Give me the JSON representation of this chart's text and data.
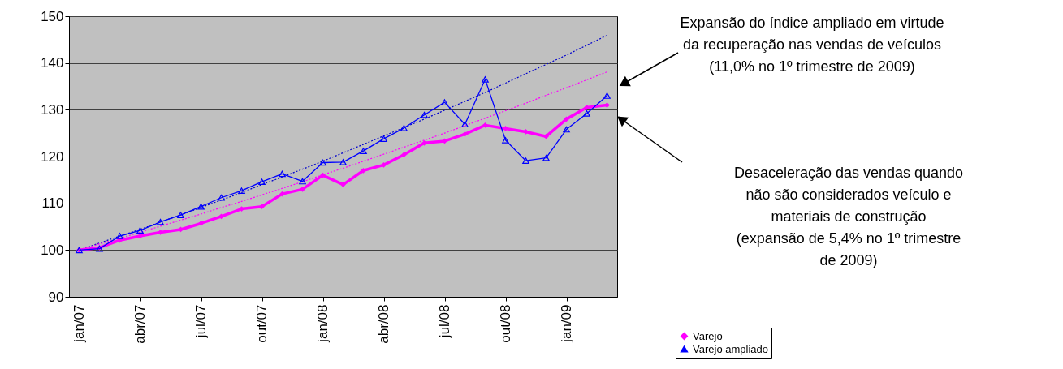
{
  "chart_data": {
    "type": "line",
    "categories": [
      "jan/07",
      null,
      null,
      "abr/07",
      null,
      null,
      "jul/07",
      null,
      null,
      "out/07",
      null,
      null,
      "jan/08",
      null,
      null,
      "abr/08",
      null,
      null,
      "jul/08",
      null,
      null,
      "out/08",
      null,
      null,
      "jan/09",
      null,
      null
    ],
    "series": [
      {
        "name": "Varejo",
        "color": "#ff00ff",
        "marker": "diamond",
        "line_style": "solid",
        "values": [
          100,
          100.5,
          102.1,
          103,
          103.8,
          104.4,
          105.7,
          107.2,
          108.8,
          109.3,
          112,
          113,
          116,
          114,
          117,
          118.2,
          120.4,
          122.9,
          123.3,
          124.8,
          126.7,
          126,
          125.3,
          124.3,
          128,
          130.5,
          131
        ]
      },
      {
        "name": "Varejo ampliado",
        "color": "#0000ff",
        "marker": "triangle",
        "line_style": "solid",
        "values": [
          100,
          100.3,
          103,
          104.2,
          106,
          107.5,
          109.3,
          111.2,
          112.7,
          114.6,
          116.3,
          114.7,
          118.7,
          118.8,
          121.2,
          123.8,
          126.1,
          128.9,
          131.6,
          126.9,
          136.5,
          123.5,
          119.1,
          119.7,
          125.8,
          129.2,
          133
        ]
      },
      {
        "color": "#0000cc",
        "marker": "none",
        "line_style": "dotted",
        "values": [
          100,
          101.5,
          103,
          104.4,
          106,
          107.5,
          109.1,
          110.7,
          112.3,
          114,
          115.6,
          117.3,
          119,
          120.8,
          122.6,
          124.4,
          126.2,
          128,
          129.9,
          131.8,
          133.7,
          135.7,
          137.7,
          139.7,
          141.7,
          143.8,
          145.9
        ]
      },
      {
        "color": "#ff00ff",
        "marker": "none",
        "line_style": "dotted",
        "values": [
          100,
          101.3,
          102.5,
          103.8,
          105.1,
          106.4,
          107.7,
          109.1,
          110.4,
          111.8,
          113.2,
          114.6,
          116.1,
          117.5,
          119,
          120.5,
          122,
          123.5,
          125,
          126.6,
          128.2,
          129.8,
          131.4,
          133.1,
          134.7,
          136.4,
          138.1
        ]
      }
    ],
    "ylim": [
      90,
      150
    ],
    "yticks": [
      90,
      100,
      110,
      120,
      130,
      140,
      150
    ],
    "grid": "y",
    "legend": "bottom right",
    "annotations": [
      "Expansão do índice ampliado em virtude\nda recuperação nas vendas de veículos\n(11,0% no 1º trimestre de 2009)",
      "Desaceleração das vendas quando\nnão são considerados veículo e\nmateriais de construção\n(expansão de 5,4% no 1º trimestre\nde 2009)"
    ]
  }
}
